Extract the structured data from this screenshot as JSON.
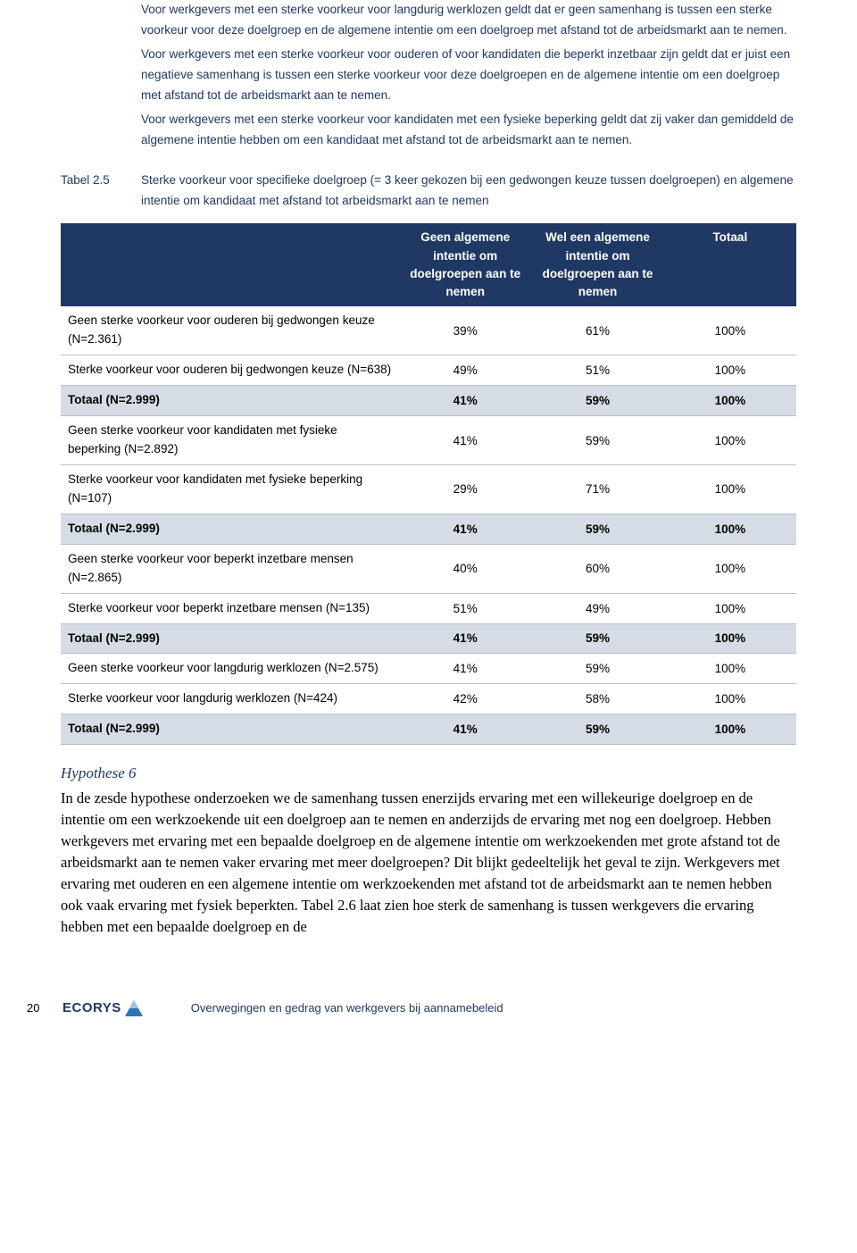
{
  "colors": {
    "brand_text": "#1f3864",
    "table_header_bg": "#1f3864",
    "table_header_text": "#ffffff",
    "total_row_bg": "#d6dce5",
    "body_text": "#000000",
    "row_border": "#bfbfbf",
    "page_bg": "#ffffff"
  },
  "intro": {
    "p1": "Voor werkgevers met een sterke voorkeur voor langdurig werklozen geldt dat er geen samenhang is tussen een sterke voorkeur voor deze doelgroep en de algemene intentie om een doelgroep met afstand tot de arbeidsmarkt aan te nemen.",
    "p2": "Voor werkgevers met een sterke voorkeur voor ouderen of voor kandidaten die beperkt inzetbaar zijn geldt dat er juist een negatieve samenhang is tussen een sterke voorkeur voor deze doelgroepen en de algemene intentie om een doelgroep met afstand tot de arbeidsmarkt aan te nemen.",
    "p3": "Voor werkgevers met een sterke voorkeur voor kandidaten met een fysieke beperking geldt dat zij vaker dan gemiddeld de algemene intentie hebben om een kandidaat met afstand tot de arbeidsmarkt aan te nemen."
  },
  "table": {
    "label": "Tabel 2.5",
    "caption": "Sterke voorkeur voor specifieke doelgroep (= 3 keer gekozen bij een gedwongen keuze tussen doelgroepen) en algemene intentie om kandidaat met afstand tot arbeidsmarkt aan te nemen",
    "headers": {
      "col1": "Geen algemene intentie om doelgroepen aan te nemen",
      "col2": "Wel een algemene intentie om doelgroepen aan te nemen",
      "col3": "Totaal"
    },
    "rows": [
      {
        "label": "Geen sterke voorkeur voor ouderen bij gedwongen keuze (N=2.361)",
        "c1": "39%",
        "c2": "61%",
        "c3": "100%",
        "total": false
      },
      {
        "label": "Sterke voorkeur voor ouderen bij gedwongen keuze (N=638)",
        "c1": "49%",
        "c2": "51%",
        "c3": "100%",
        "total": false
      },
      {
        "label": "Totaal (N=2.999)",
        "c1": "41%",
        "c2": "59%",
        "c3": "100%",
        "total": true
      },
      {
        "label": "Geen sterke voorkeur voor kandidaten met fysieke beperking (N=2.892)",
        "c1": "41%",
        "c2": "59%",
        "c3": "100%",
        "total": false
      },
      {
        "label": "Sterke voorkeur voor kandidaten met fysieke beperking (N=107)",
        "c1": "29%",
        "c2": "71%",
        "c3": "100%",
        "total": false
      },
      {
        "label": "Totaal (N=2.999)",
        "c1": "41%",
        "c2": "59%",
        "c3": "100%",
        "total": true
      },
      {
        "label": "Geen sterke voorkeur voor beperkt inzetbare mensen (N=2.865)",
        "c1": "40%",
        "c2": "60%",
        "c3": "100%",
        "total": false
      },
      {
        "label": "Sterke voorkeur voor beperkt inzetbare mensen (N=135)",
        "c1": "51%",
        "c2": "49%",
        "c3": "100%",
        "total": false
      },
      {
        "label": "Totaal (N=2.999)",
        "c1": "41%",
        "c2": "59%",
        "c3": "100%",
        "total": true
      },
      {
        "label": "Geen sterke voorkeur voor langdurig werklozen (N=2.575)",
        "c1": "41%",
        "c2": "59%",
        "c3": "100%",
        "total": false
      },
      {
        "label": "Sterke voorkeur voor langdurig werklozen (N=424)",
        "c1": "42%",
        "c2": "58%",
        "c3": "100%",
        "total": false
      },
      {
        "label": "Totaal (N=2.999)",
        "c1": "41%",
        "c2": "59%",
        "c3": "100%",
        "total": true
      }
    ]
  },
  "hypothesis": {
    "heading": "Hypothese 6",
    "body": "In de zesde hypothese onderzoeken we de samenhang tussen enerzijds ervaring met een willekeurige doelgroep en de intentie om een werkzoekende uit een doelgroep aan te nemen en anderzijds de ervaring met nog een doelgroep. Hebben werkgevers met ervaring met een bepaalde doelgroep en de algemene intentie om werkzoekenden met grote afstand tot de arbeidsmarkt aan te nemen vaker ervaring met meer doelgroepen? Dit blijkt gedeeltelijk het geval te zijn. Werkgevers met ervaring met ouderen en een algemene intentie om werkzoekenden met afstand tot de arbeidsmarkt aan te nemen hebben ook vaak ervaring met fysiek beperkten. Tabel 2.6 laat zien hoe sterk de samenhang is tussen werkgevers die ervaring hebben met een bepaalde doelgroep en de"
  },
  "footer": {
    "page_number": "20",
    "logo_text": "ECORYS",
    "doc_title": "Overwegingen en gedrag van werkgevers bij aannamebeleid"
  }
}
